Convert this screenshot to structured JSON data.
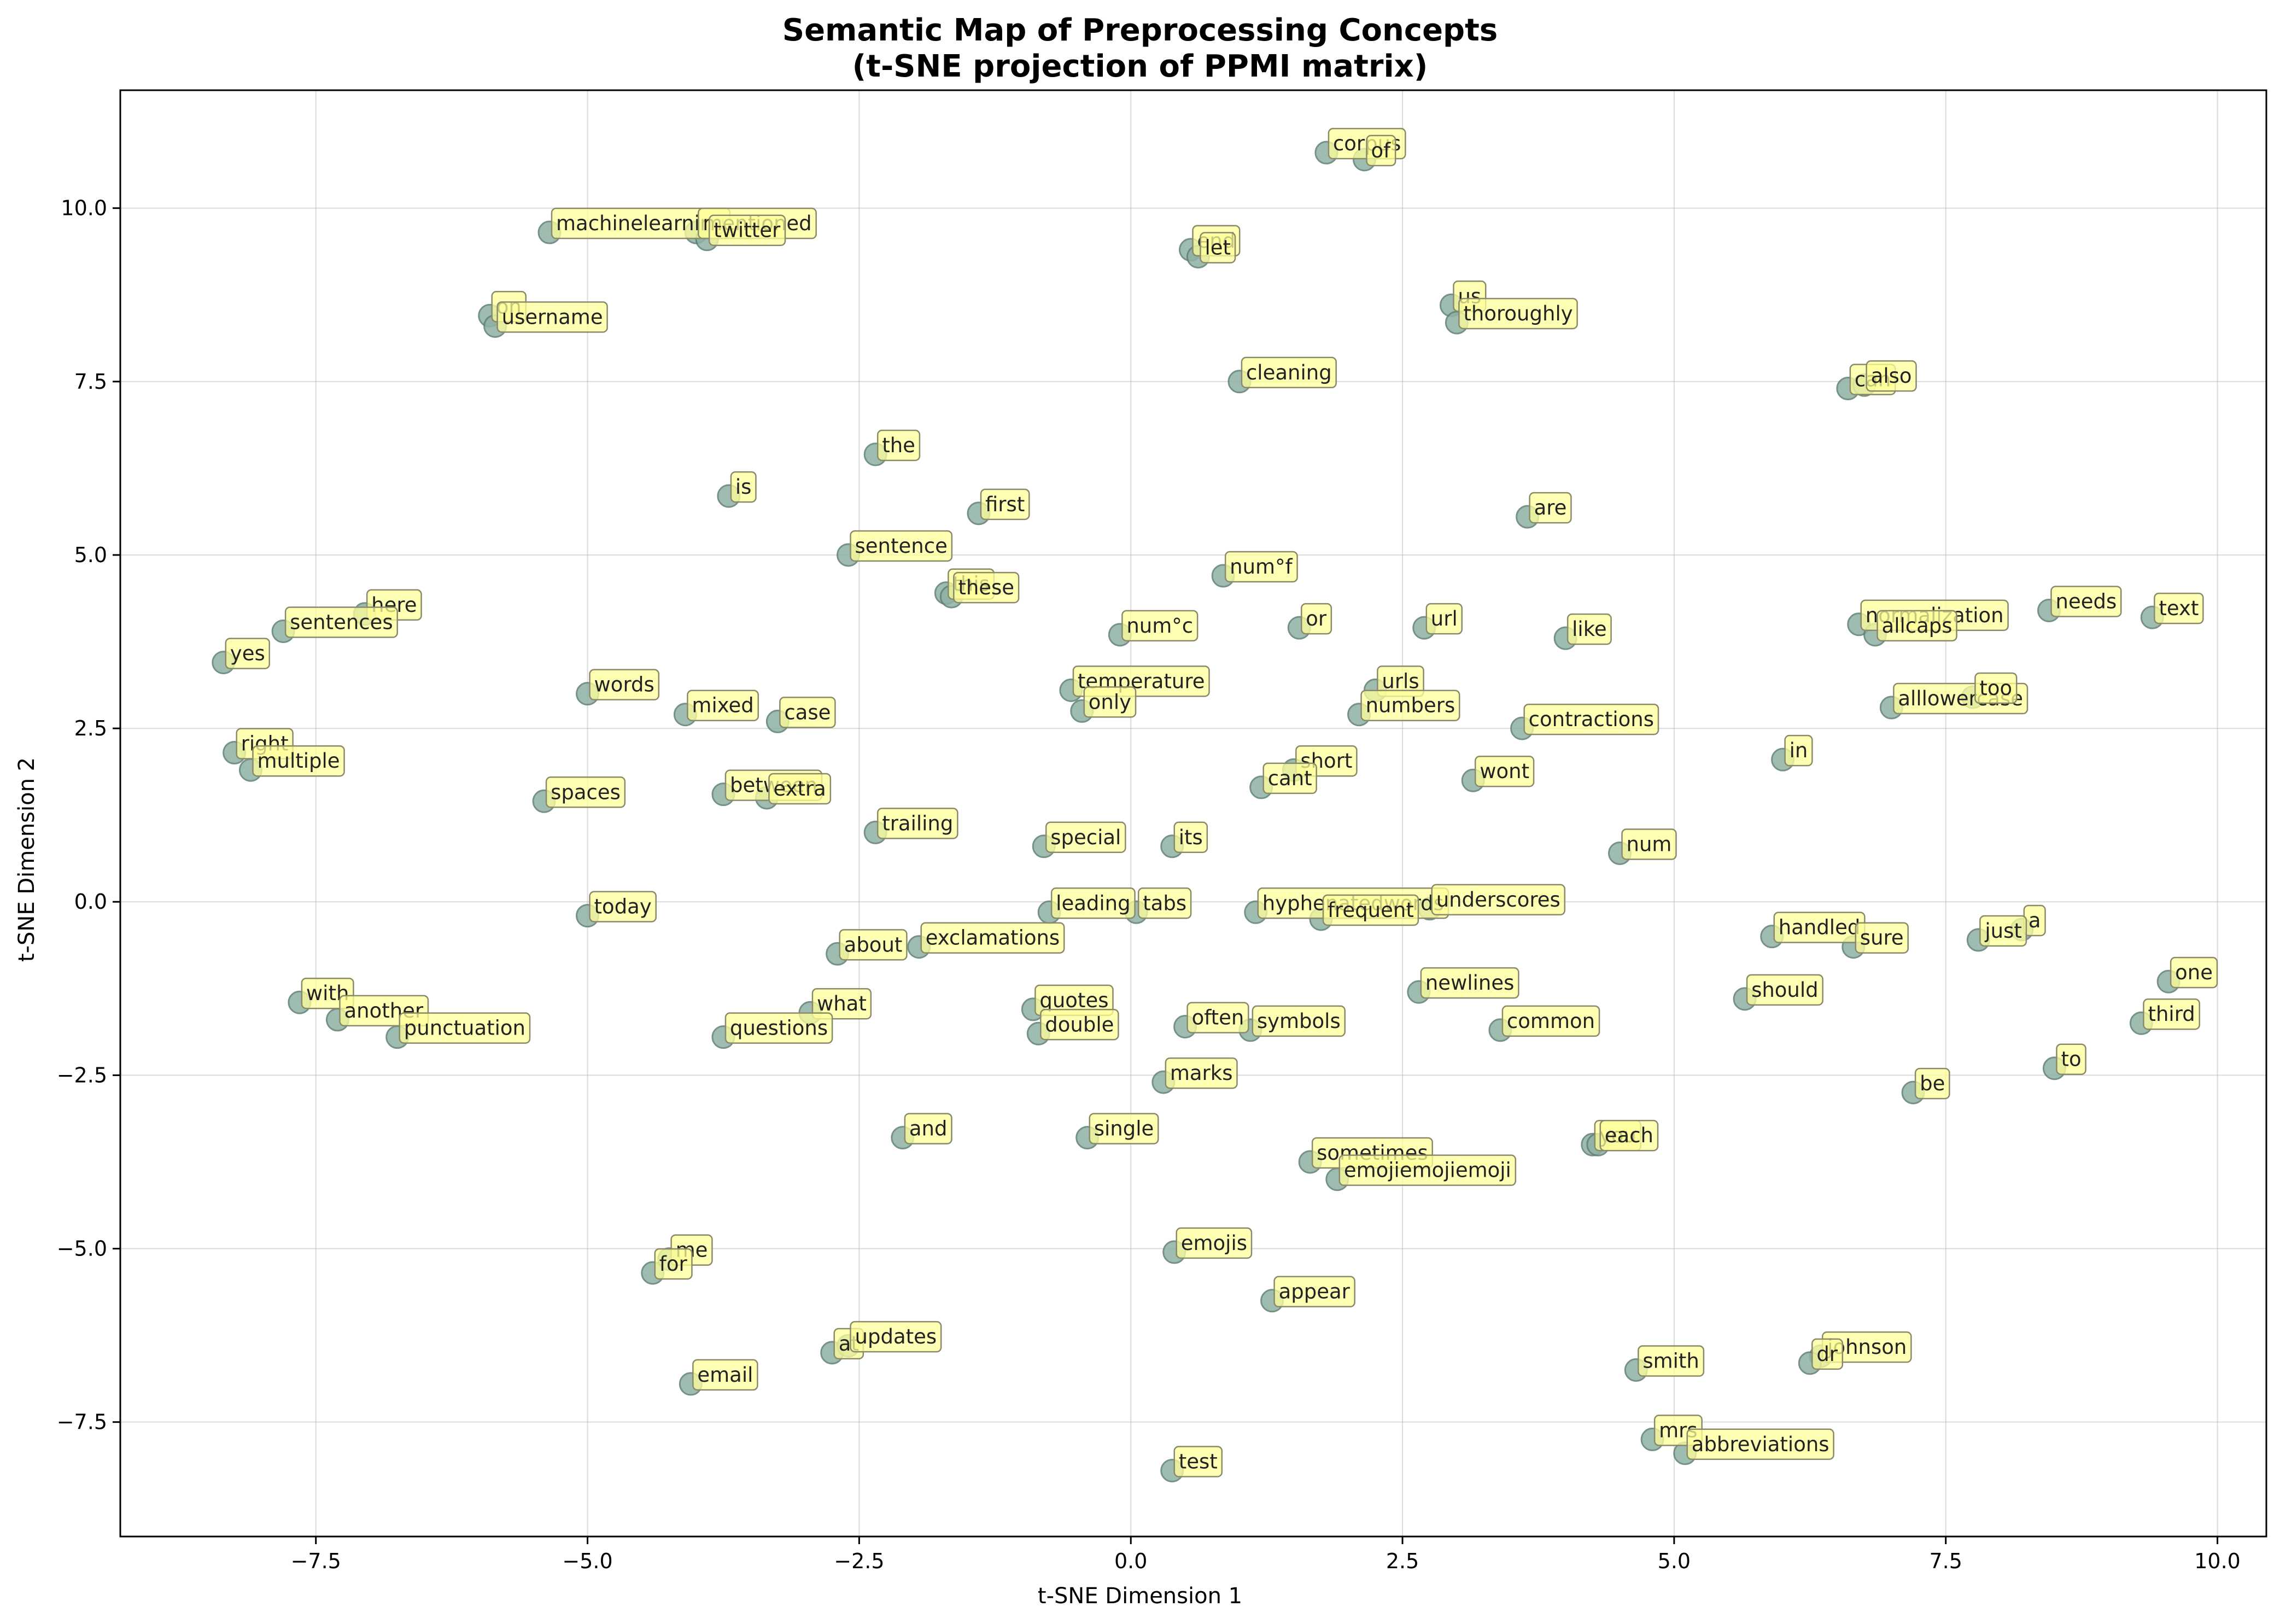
{
  "chart_data": {
    "type": "scatter",
    "title": "Semantic Map of Preprocessing Concepts",
    "subtitle": "(t-SNE projection of PPMI matrix)",
    "xlabel": "t-SNE Dimension 1",
    "ylabel": "t-SNE Dimension 2",
    "xlim": [
      -9.3,
      10.45
    ],
    "ylim": [
      -9.15,
      11.7
    ],
    "xticks": [
      -7.5,
      -5.0,
      -2.5,
      0.0,
      2.5,
      5.0,
      7.5,
      10.0
    ],
    "xtick_labels": [
      "−7.5",
      "−5.0",
      "−2.5",
      "0.0",
      "2.5",
      "5.0",
      "7.5",
      "10.0"
    ],
    "yticks": [
      -7.5,
      -5.0,
      -2.5,
      0.0,
      2.5,
      5.0,
      7.5,
      10.0
    ],
    "ytick_labels": [
      "−7.5",
      "−5.0",
      "−2.5",
      "0.0",
      "2.5",
      "5.0",
      "7.5",
      "10.0"
    ],
    "grid": true,
    "colors": {
      "point_fill": "#8fb1a3",
      "point_edge": "#5f7f73",
      "label_bg": "#ffff99",
      "label_border": "#8a8a6a"
    },
    "points": [
      {
        "label": "corpus",
        "x": 1.8,
        "y": 10.8
      },
      {
        "label": "of",
        "x": 2.15,
        "y": 10.7
      },
      {
        "label": "machinelearning",
        "x": -5.35,
        "y": 9.65
      },
      {
        "label": "mentioned",
        "x": -4.0,
        "y": 9.65
      },
      {
        "label": "twitter",
        "x": -3.9,
        "y": 9.55
      },
      {
        "label": "end",
        "x": 0.55,
        "y": 9.4
      },
      {
        "label": "let",
        "x": 0.62,
        "y": 9.3
      },
      {
        "label": "on",
        "x": -5.9,
        "y": 8.45
      },
      {
        "label": "username",
        "x": -5.85,
        "y": 8.3
      },
      {
        "label": "us",
        "x": 2.95,
        "y": 8.6
      },
      {
        "label": "thoroughly",
        "x": 3.0,
        "y": 8.35
      },
      {
        "label": "cleaning",
        "x": 1.0,
        "y": 7.5
      },
      {
        "label": "can",
        "x": 6.6,
        "y": 7.4
      },
      {
        "label": "also",
        "x": 6.75,
        "y": 7.45
      },
      {
        "label": "the",
        "x": -2.35,
        "y": 6.45
      },
      {
        "label": "is",
        "x": -3.7,
        "y": 5.85
      },
      {
        "label": "first",
        "x": -1.4,
        "y": 5.6
      },
      {
        "label": "are",
        "x": 3.65,
        "y": 5.55
      },
      {
        "label": "sentence",
        "x": -2.6,
        "y": 5.0
      },
      {
        "label": "num°f",
        "x": 0.85,
        "y": 4.7
      },
      {
        "label": "this",
        "x": -1.7,
        "y": 4.45
      },
      {
        "label": "these",
        "x": -1.65,
        "y": 4.4
      },
      {
        "label": "here",
        "x": -7.05,
        "y": 4.15
      },
      {
        "label": "sentences",
        "x": -7.8,
        "y": 3.9
      },
      {
        "label": "or",
        "x": 1.55,
        "y": 3.95
      },
      {
        "label": "url",
        "x": 2.7,
        "y": 3.95
      },
      {
        "label": "num°c",
        "x": -0.1,
        "y": 3.85
      },
      {
        "label": "like",
        "x": 4.0,
        "y": 3.8
      },
      {
        "label": "normalization",
        "x": 6.7,
        "y": 4.0
      },
      {
        "label": "allcaps",
        "x": 6.85,
        "y": 3.85
      },
      {
        "label": "needs",
        "x": 8.45,
        "y": 4.2
      },
      {
        "label": "text",
        "x": 9.4,
        "y": 4.1
      },
      {
        "label": "yes",
        "x": -8.35,
        "y": 3.45
      },
      {
        "label": "words",
        "x": -5.0,
        "y": 3.0
      },
      {
        "label": "temperature",
        "x": -0.55,
        "y": 3.05
      },
      {
        "label": "urls",
        "x": 2.25,
        "y": 3.05
      },
      {
        "label": "mixed",
        "x": -4.1,
        "y": 2.7
      },
      {
        "label": "case",
        "x": -3.25,
        "y": 2.6
      },
      {
        "label": "only",
        "x": -0.45,
        "y": 2.75
      },
      {
        "label": "numbers",
        "x": 2.1,
        "y": 2.7
      },
      {
        "label": "contractions",
        "x": 3.6,
        "y": 2.5
      },
      {
        "label": "alllowercase",
        "x": 7.0,
        "y": 2.8
      },
      {
        "label": "too",
        "x": 7.75,
        "y": 2.95
      },
      {
        "label": "right",
        "x": -8.25,
        "y": 2.15
      },
      {
        "label": "multiple",
        "x": -8.1,
        "y": 1.9
      },
      {
        "label": "in",
        "x": 6.0,
        "y": 2.05
      },
      {
        "label": "short",
        "x": 1.5,
        "y": 1.9
      },
      {
        "label": "cant",
        "x": 1.2,
        "y": 1.65
      },
      {
        "label": "wont",
        "x": 3.15,
        "y": 1.75
      },
      {
        "label": "between",
        "x": -3.75,
        "y": 1.55
      },
      {
        "label": "extra",
        "x": -3.35,
        "y": 1.5
      },
      {
        "label": "spaces",
        "x": -5.4,
        "y": 1.45
      },
      {
        "label": "trailing",
        "x": -2.35,
        "y": 1.0
      },
      {
        "label": "special",
        "x": -0.8,
        "y": 0.8
      },
      {
        "label": "its",
        "x": 0.38,
        "y": 0.8
      },
      {
        "label": "num",
        "x": 4.5,
        "y": 0.7
      },
      {
        "label": "today",
        "x": -5.0,
        "y": -0.2
      },
      {
        "label": "leading",
        "x": -0.75,
        "y": -0.15
      },
      {
        "label": "tabs",
        "x": 0.05,
        "y": -0.15
      },
      {
        "label": "hyphenatedwords",
        "x": 1.15,
        "y": -0.15
      },
      {
        "label": "frequent",
        "x": 1.75,
        "y": -0.25
      },
      {
        "label": "underscores",
        "x": 2.75,
        "y": -0.1
      },
      {
        "label": "a",
        "x": 8.2,
        "y": -0.4
      },
      {
        "label": "handled",
        "x": 5.9,
        "y": -0.5
      },
      {
        "label": "sure",
        "x": 6.65,
        "y": -0.65
      },
      {
        "label": "just",
        "x": 7.8,
        "y": -0.55
      },
      {
        "label": "about",
        "x": -2.7,
        "y": -0.75
      },
      {
        "label": "exclamations",
        "x": -1.95,
        "y": -0.65
      },
      {
        "label": "one",
        "x": 9.55,
        "y": -1.15
      },
      {
        "label": "with",
        "x": -7.65,
        "y": -1.45
      },
      {
        "label": "another",
        "x": -7.3,
        "y": -1.7
      },
      {
        "label": "punctuation",
        "x": -6.75,
        "y": -1.95
      },
      {
        "label": "newlines",
        "x": 2.65,
        "y": -1.3
      },
      {
        "label": "should",
        "x": 5.65,
        "y": -1.4
      },
      {
        "label": "what",
        "x": -2.95,
        "y": -1.6
      },
      {
        "label": "quotes",
        "x": -0.9,
        "y": -1.55
      },
      {
        "label": "questions",
        "x": -3.75,
        "y": -1.95
      },
      {
        "label": "double",
        "x": -0.85,
        "y": -1.9
      },
      {
        "label": "often",
        "x": 0.5,
        "y": -1.8
      },
      {
        "label": "symbols",
        "x": 1.1,
        "y": -1.85
      },
      {
        "label": "common",
        "x": 3.4,
        "y": -1.85
      },
      {
        "label": "third",
        "x": 9.3,
        "y": -1.75
      },
      {
        "label": "to",
        "x": 8.5,
        "y": -2.4
      },
      {
        "label": "marks",
        "x": 0.3,
        "y": -2.6
      },
      {
        "label": "be",
        "x": 7.2,
        "y": -2.75
      },
      {
        "label": "and",
        "x": -2.1,
        "y": -3.4
      },
      {
        "label": "single",
        "x": -0.4,
        "y": -3.4
      },
      {
        "label": "you",
        "x": 4.25,
        "y": -3.5
      },
      {
        "label": "each",
        "x": 4.3,
        "y": -3.5
      },
      {
        "label": "sometimes",
        "x": 1.65,
        "y": -3.75
      },
      {
        "label": "emojiemojiemoji",
        "x": 1.9,
        "y": -4.0
      },
      {
        "label": "emojis",
        "x": 0.4,
        "y": -5.05
      },
      {
        "label": "me",
        "x": -4.25,
        "y": -5.15
      },
      {
        "label": "for",
        "x": -4.4,
        "y": -5.35
      },
      {
        "label": "appear",
        "x": 1.3,
        "y": -5.75
      },
      {
        "label": "at",
        "x": -2.75,
        "y": -6.5
      },
      {
        "label": "updates",
        "x": -2.6,
        "y": -6.4
      },
      {
        "label": "email",
        "x": -4.05,
        "y": -6.95
      },
      {
        "label": "smith",
        "x": 4.65,
        "y": -6.75
      },
      {
        "label": "johnson",
        "x": 6.35,
        "y": -6.55
      },
      {
        "label": "dr",
        "x": 6.25,
        "y": -6.65
      },
      {
        "label": "mrs",
        "x": 4.8,
        "y": -7.75
      },
      {
        "label": "abbreviations",
        "x": 5.1,
        "y": -7.95
      },
      {
        "label": "test",
        "x": 0.38,
        "y": -8.2
      }
    ]
  }
}
